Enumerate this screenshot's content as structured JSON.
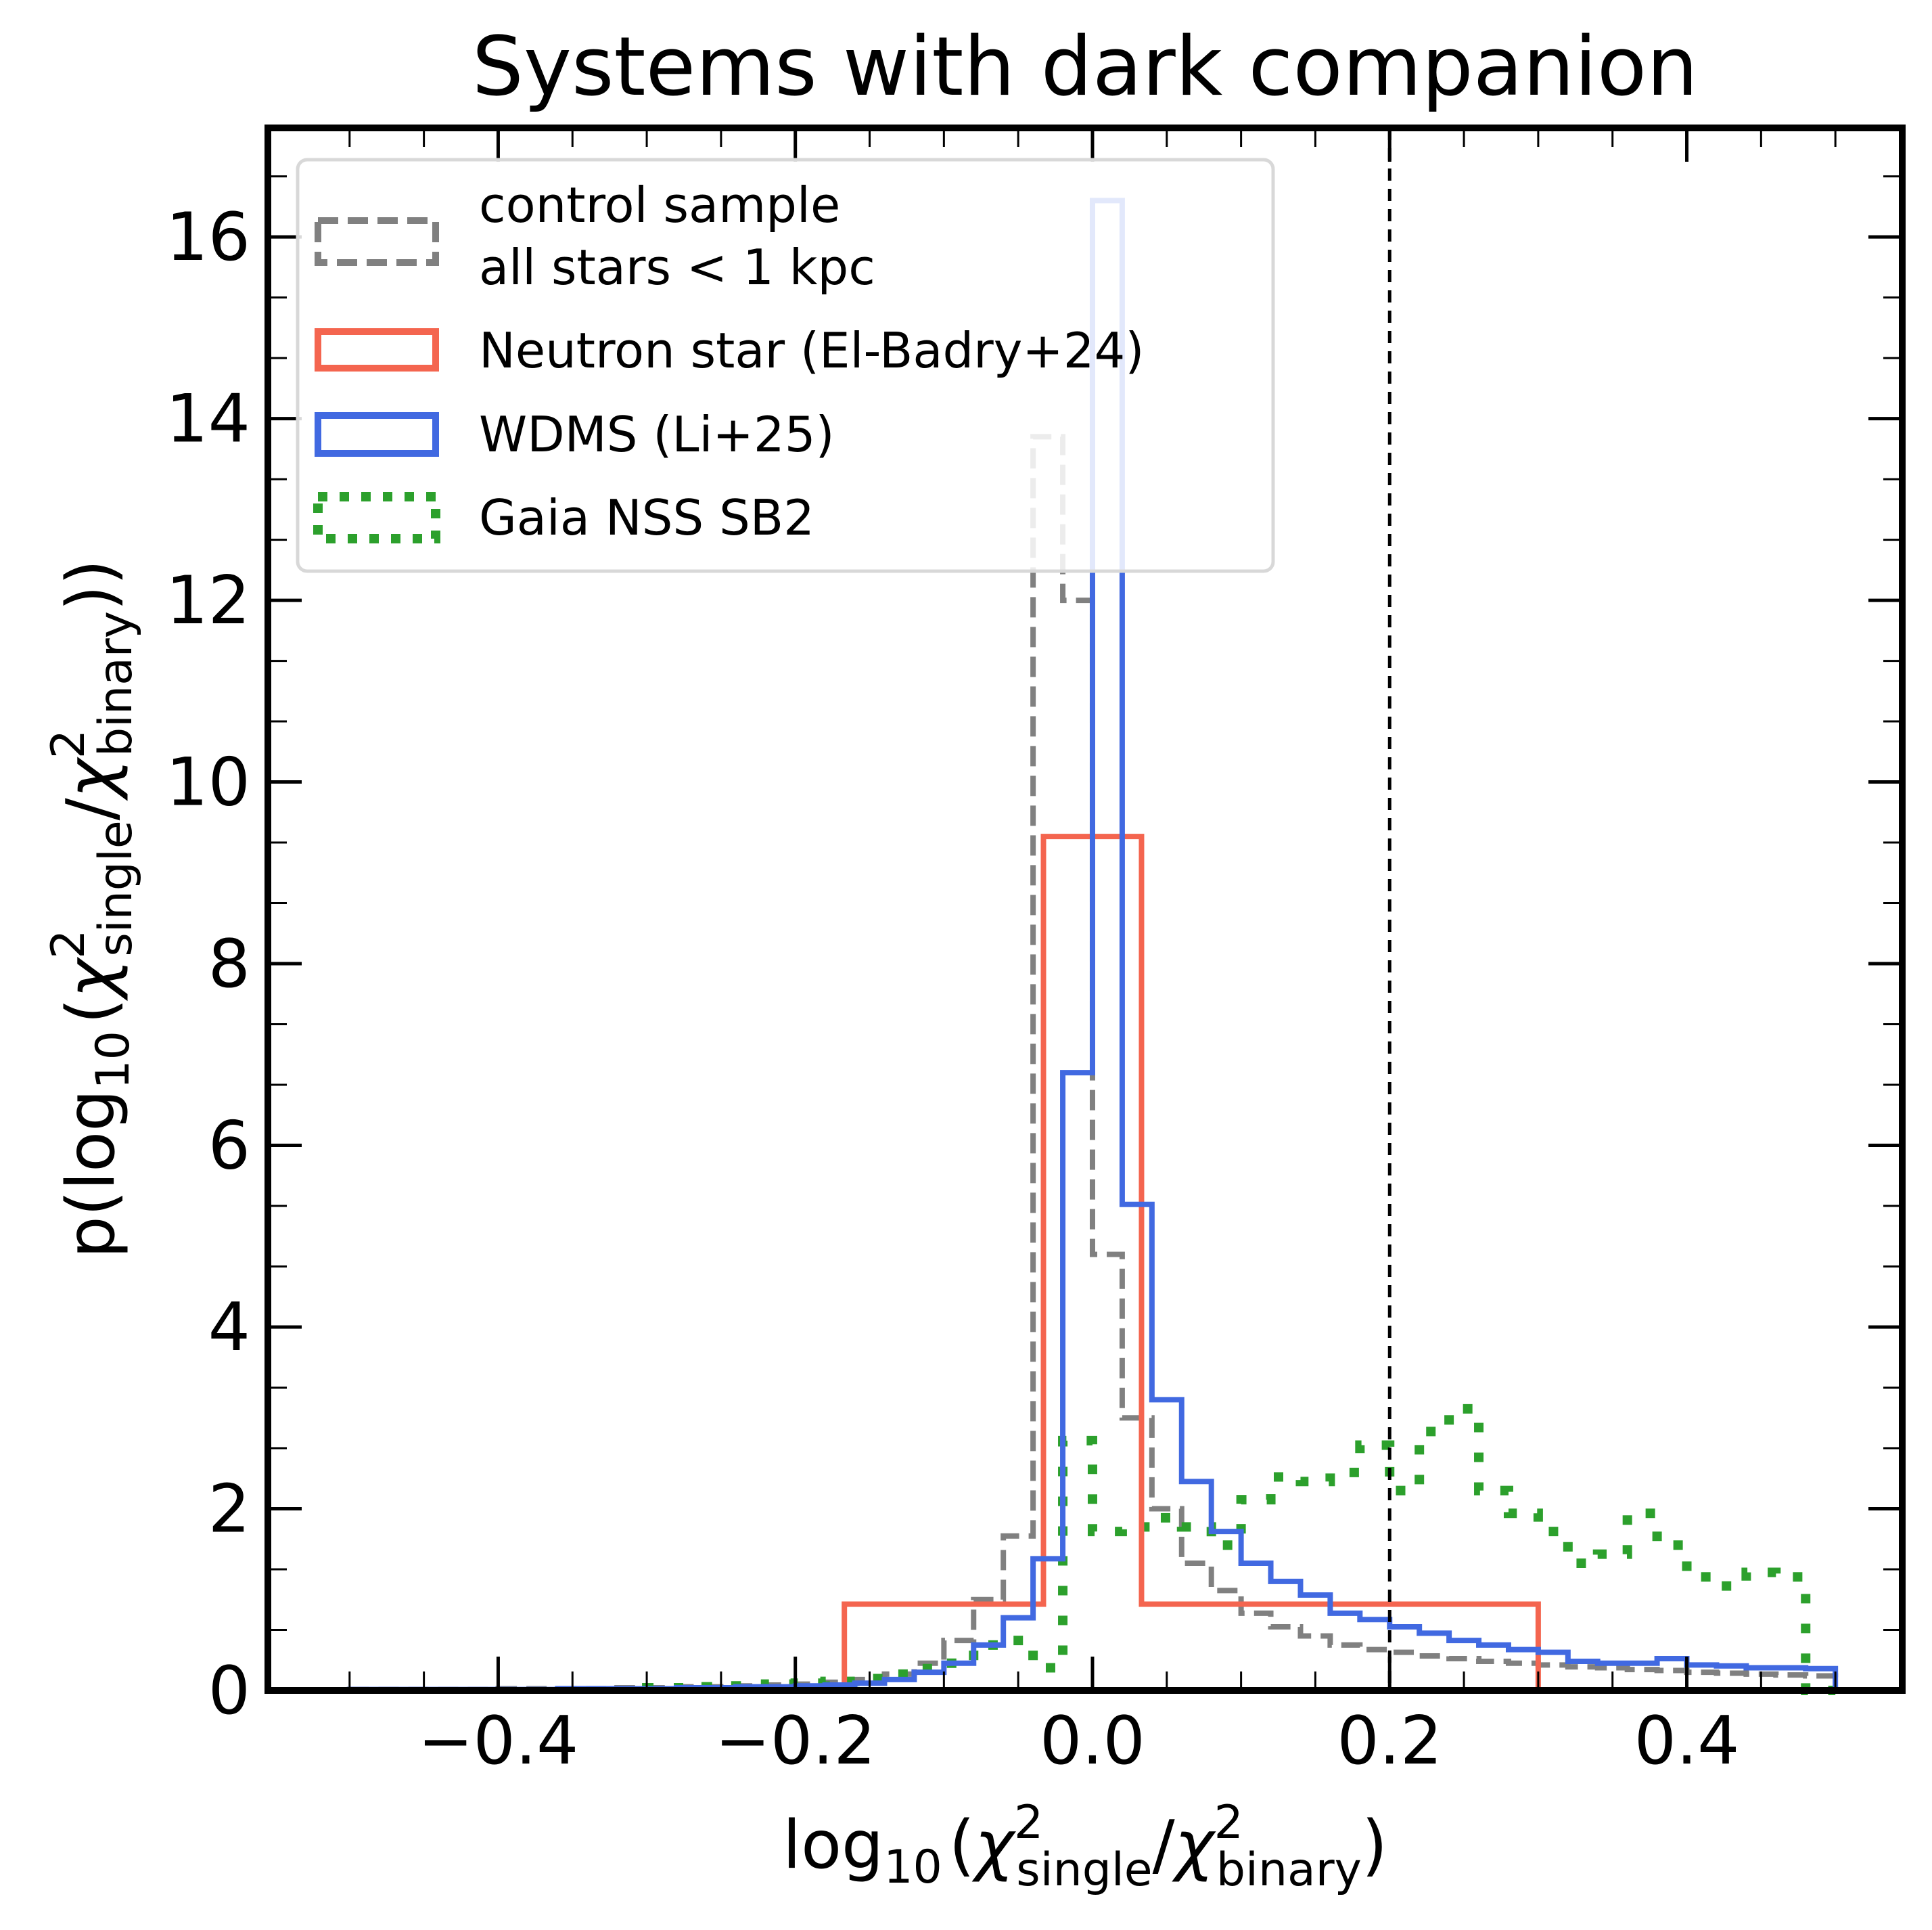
{
  "chart_data": {
    "type": "histogram",
    "title": "Systems with dark companion",
    "xlabel": {
      "prefix": "log",
      "sub10": "10",
      "open": "(",
      "chi": "χ",
      "sq": "2",
      "single": "single",
      "slash": "/",
      "binary": "binary",
      "close": ")"
    },
    "ylabel": {
      "prefix": "p(log",
      "sub10": "10",
      "open": "(",
      "chi": "χ",
      "sq": "2",
      "single": "single",
      "slash": "/",
      "binary": "binary",
      "close": "))"
    },
    "xlim": [
      -0.555,
      0.545
    ],
    "ylim": [
      0,
      17.2
    ],
    "x_ticks": [
      -0.4,
      -0.2,
      0.0,
      0.2,
      0.4
    ],
    "x_tick_labels": [
      "−0.4",
      "−0.2",
      "0.0",
      "0.2",
      "0.4"
    ],
    "y_ticks": [
      0,
      2,
      4,
      6,
      8,
      10,
      12,
      14,
      16
    ],
    "y_tick_labels": [
      "0",
      "2",
      "4",
      "6",
      "8",
      "10",
      "12",
      "14",
      "16"
    ],
    "threshold_x": 0.2,
    "legend_position": "upper left",
    "series": [
      {
        "name": "control sample",
        "name_line2": "all stars < 1 kpc",
        "color": "#808080",
        "style": "dashed",
        "edges": [
          -0.5,
          -0.48,
          -0.46,
          -0.44,
          -0.42,
          -0.4,
          -0.38,
          -0.36,
          -0.34,
          -0.32,
          -0.3,
          -0.28,
          -0.26,
          -0.24,
          -0.22,
          -0.2,
          -0.18,
          -0.16,
          -0.14,
          -0.12,
          -0.1,
          -0.08,
          -0.06,
          -0.04,
          -0.02,
          0.0,
          0.02,
          0.04,
          0.06,
          0.08,
          0.1,
          0.12,
          0.14,
          0.16,
          0.18,
          0.2,
          0.22,
          0.24,
          0.26,
          0.28,
          0.3,
          0.32,
          0.34,
          0.36,
          0.38,
          0.4,
          0.42,
          0.44,
          0.46,
          0.48,
          0.5
        ],
        "values": [
          0.01,
          0.01,
          0.01,
          0.01,
          0.01,
          0.02,
          0.02,
          0.02,
          0.02,
          0.03,
          0.03,
          0.04,
          0.04,
          0.05,
          0.06,
          0.07,
          0.09,
          0.12,
          0.18,
          0.3,
          0.55,
          1.0,
          1.7,
          13.8,
          12.0,
          4.8,
          3.0,
          2.0,
          1.4,
          1.1,
          0.85,
          0.7,
          0.6,
          0.5,
          0.45,
          0.42,
          0.38,
          0.35,
          0.32,
          0.3,
          0.28,
          0.26,
          0.25,
          0.23,
          0.22,
          0.2,
          0.19,
          0.18,
          0.17,
          0.16
        ]
      },
      {
        "name": "Neutron star (El-Badry+24)",
        "color": "#f4654f",
        "style": "solid",
        "edges": [
          -0.167,
          -0.033,
          0.033,
          0.3
        ],
        "values": [
          0.95,
          9.4,
          0.95
        ]
      },
      {
        "name": "WDMS (Li+25)",
        "color": "#4169e1",
        "style": "solid",
        "edges": [
          -0.5,
          -0.48,
          -0.46,
          -0.44,
          -0.42,
          -0.4,
          -0.38,
          -0.36,
          -0.34,
          -0.32,
          -0.3,
          -0.28,
          -0.26,
          -0.24,
          -0.22,
          -0.2,
          -0.18,
          -0.16,
          -0.14,
          -0.12,
          -0.1,
          -0.08,
          -0.06,
          -0.04,
          -0.02,
          0.0,
          0.02,
          0.04,
          0.06,
          0.08,
          0.1,
          0.12,
          0.14,
          0.16,
          0.18,
          0.2,
          0.22,
          0.24,
          0.26,
          0.28,
          0.3,
          0.32,
          0.34,
          0.36,
          0.38,
          0.4,
          0.42,
          0.44,
          0.46,
          0.48,
          0.5
        ],
        "values": [
          0.01,
          0.01,
          0.01,
          0.01,
          0.01,
          0.01,
          0.01,
          0.02,
          0.02,
          0.02,
          0.02,
          0.03,
          0.03,
          0.04,
          0.04,
          0.05,
          0.06,
          0.08,
          0.12,
          0.2,
          0.3,
          0.5,
          0.8,
          1.45,
          6.8,
          16.4,
          5.35,
          3.2,
          2.3,
          1.75,
          1.4,
          1.2,
          1.05,
          0.85,
          0.78,
          0.7,
          0.63,
          0.55,
          0.5,
          0.45,
          0.42,
          0.32,
          0.3,
          0.3,
          0.35,
          0.28,
          0.27,
          0.25,
          0.25,
          0.24
        ]
      },
      {
        "name": "Gaia NSS SB2",
        "color": "#2ca02c",
        "style": "dotted",
        "edges": [
          -0.3,
          -0.28,
          -0.26,
          -0.24,
          -0.22,
          -0.2,
          -0.18,
          -0.16,
          -0.14,
          -0.12,
          -0.1,
          -0.08,
          -0.06,
          -0.04,
          -0.02,
          0.0,
          0.02,
          0.04,
          0.06,
          0.08,
          0.1,
          0.12,
          0.14,
          0.16,
          0.18,
          0.2,
          0.22,
          0.24,
          0.26,
          0.28,
          0.3,
          0.32,
          0.34,
          0.36,
          0.38,
          0.4,
          0.42,
          0.44,
          0.46,
          0.48,
          0.5
        ],
        "values": [
          0.03,
          0.03,
          0.04,
          0.05,
          0.07,
          0.08,
          0.1,
          0.13,
          0.18,
          0.24,
          0.3,
          0.5,
          0.55,
          0.25,
          2.75,
          1.75,
          1.8,
          1.9,
          1.8,
          1.6,
          2.1,
          2.35,
          2.3,
          2.4,
          2.7,
          2.2,
          2.85,
          3.1,
          2.2,
          1.95,
          1.75,
          1.4,
          1.5,
          1.95,
          1.6,
          1.25,
          1.15,
          1.3,
          1.25,
          0.0
        ]
      }
    ]
  }
}
